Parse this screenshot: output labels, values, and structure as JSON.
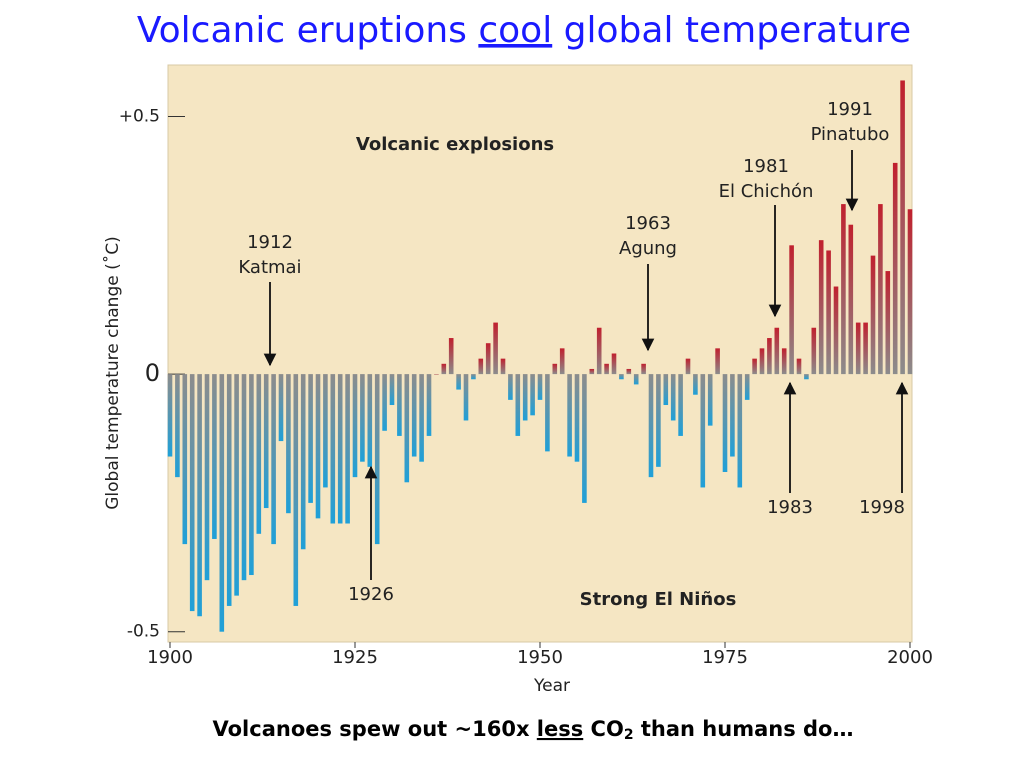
{
  "chart_data": {
    "type": "bar",
    "title": [
      "Volcanic eruptions ",
      "cool",
      " global temperature"
    ],
    "subtitle": [
      "Volcanoes spew out ~160x ",
      "less",
      " CO",
      "2",
      " than humans do…"
    ],
    "x_label": "Year",
    "y_label": "Global temperature change (˚C)",
    "x": [
      1900,
      1901,
      1902,
      1903,
      1904,
      1905,
      1906,
      1907,
      1908,
      1909,
      1910,
      1911,
      1912,
      1913,
      1914,
      1915,
      1916,
      1917,
      1918,
      1919,
      1920,
      1921,
      1922,
      1923,
      1924,
      1925,
      1926,
      1927,
      1928,
      1929,
      1930,
      1931,
      1932,
      1933,
      1934,
      1935,
      1936,
      1937,
      1938,
      1939,
      1940,
      1941,
      1942,
      1943,
      1944,
      1945,
      1946,
      1947,
      1948,
      1949,
      1950,
      1951,
      1952,
      1953,
      1954,
      1955,
      1956,
      1957,
      1958,
      1959,
      1960,
      1961,
      1962,
      1963,
      1964,
      1965,
      1966,
      1967,
      1968,
      1969,
      1970,
      1971,
      1972,
      1973,
      1974,
      1975,
      1976,
      1977,
      1978,
      1979,
      1980,
      1981,
      1982,
      1983,
      1984,
      1985,
      1986,
      1987,
      1988,
      1989,
      1990,
      1991,
      1992,
      1993,
      1994,
      1995,
      1996,
      1997,
      1998,
      1999,
      2000
    ],
    "values": [
      -0.16,
      -0.2,
      -0.33,
      -0.46,
      -0.47,
      -0.4,
      -0.32,
      -0.5,
      -0.45,
      -0.43,
      -0.4,
      -0.39,
      -0.31,
      -0.26,
      -0.33,
      -0.13,
      -0.27,
      -0.45,
      -0.34,
      -0.25,
      -0.28,
      -0.22,
      -0.29,
      -0.29,
      -0.29,
      -0.2,
      -0.17,
      -0.18,
      -0.33,
      -0.11,
      -0.06,
      -0.12,
      -0.21,
      -0.16,
      -0.17,
      -0.12,
      0.0,
      0.02,
      0.07,
      -0.03,
      -0.09,
      -0.01,
      0.03,
      0.06,
      0.1,
      0.03,
      -0.05,
      -0.12,
      -0.09,
      -0.08,
      -0.05,
      -0.15,
      0.02,
      0.05,
      -0.16,
      -0.17,
      -0.25,
      0.01,
      0.09,
      0.02,
      0.04,
      -0.01,
      0.01,
      -0.02,
      0.02,
      -0.2,
      -0.18,
      -0.06,
      -0.09,
      -0.12,
      0.03,
      -0.04,
      -0.22,
      -0.1,
      0.05,
      -0.19,
      -0.16,
      -0.22,
      -0.05,
      0.03,
      0.05,
      0.07,
      0.09,
      0.05,
      0.25,
      0.03,
      -0.01,
      0.09,
      0.26,
      0.24,
      0.17,
      0.33,
      0.29,
      0.1,
      0.1,
      0.23,
      0.33,
      0.2,
      0.41,
      0.57,
      0.32
    ],
    "positive_color": "#c0202e",
    "negative_color": "#1fa0d8",
    "xlim": [
      1900,
      2000
    ],
    "xticks": [
      1900,
      1925,
      1950,
      1975,
      2000
    ],
    "ylim": [
      -0.52,
      0.6
    ],
    "yticks": [
      {
        "value": 0.5,
        "label": "+0.5"
      },
      0,
      -0.5
    ],
    "annotations": [
      [
        "1912",
        "Katmai"
      ],
      [
        "1926"
      ],
      [
        "1963",
        "Agung"
      ],
      [
        "1981",
        "El Chichón"
      ],
      [
        "1991",
        "Pinatubo"
      ],
      [
        "1983"
      ],
      [
        "1998"
      ],
      [
        "Volcanic explosions"
      ],
      [
        "Strong El Niños"
      ]
    ]
  }
}
